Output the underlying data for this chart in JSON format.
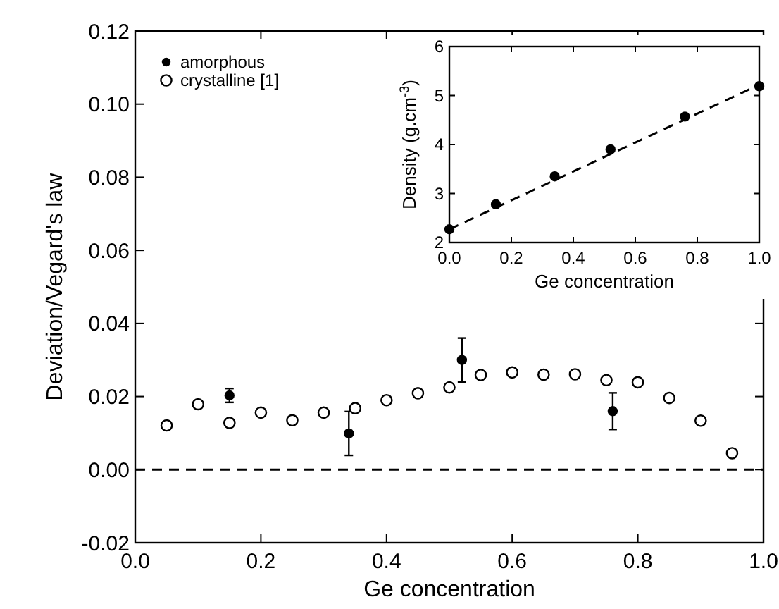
{
  "chart_data": [
    {
      "type": "scatter",
      "xlabel": "Ge concentration",
      "ylabel": "Deviation/Vegard's law",
      "xlim": [
        0,
        1
      ],
      "ylim": [
        -0.02,
        0.12
      ],
      "xticks": [
        {
          "value": 0,
          "label": "0.0"
        },
        {
          "value": 0.2,
          "label": "0.2"
        },
        {
          "value": 0.4,
          "label": "0.4"
        },
        {
          "value": 0.6,
          "label": "0.6"
        },
        {
          "value": 0.8,
          "label": "0.8"
        },
        {
          "value": 1,
          "label": "1.0"
        }
      ],
      "yticks": [
        {
          "value": -0.02,
          "label": "-0.02"
        },
        {
          "value": 0,
          "label": "0.00"
        },
        {
          "value": 0.02,
          "label": "0.02"
        },
        {
          "value": 0.04,
          "label": "0.04"
        },
        {
          "value": 0.06,
          "label": "0.06"
        },
        {
          "value": 0.08,
          "label": "0.08"
        },
        {
          "value": 0.1,
          "label": "0.10"
        },
        {
          "value": 0.12,
          "label": "0.12"
        }
      ],
      "legend": "top left",
      "grid": false,
      "marker": "circle",
      "series": [
        {
          "name": "amorphous",
          "color": "#000000",
          "x": [
            0.15,
            0.34,
            0.52,
            0.76
          ],
          "values": [
            0.0203,
            0.0099,
            0.03,
            0.016
          ],
          "errors": [
            0.0019,
            0.006,
            0.006,
            0.005
          ]
        },
        {
          "name": "crystalline [1]",
          "color": "#000000",
          "x": [
            0.05,
            0.1,
            0.15,
            0.2,
            0.25,
            0.3,
            0.35,
            0.4,
            0.45,
            0.5,
            0.55,
            0.6,
            0.65,
            0.7,
            0.75,
            0.8,
            0.85,
            0.9,
            0.95
          ],
          "values": [
            0.0121,
            0.0179,
            0.0128,
            0.0156,
            0.0135,
            0.0156,
            0.0168,
            0.019,
            0.0209,
            0.0225,
            0.0259,
            0.0266,
            0.026,
            0.0261,
            0.0245,
            0.0239,
            0.0196,
            0.0134,
            0.0045
          ]
        }
      ],
      "ref_lines": [
        {
          "axis": "y",
          "value": 0,
          "color": "#000000",
          "line_style": "dashed"
        }
      ]
    },
    {
      "type": "scatter",
      "xlabel": "Ge concentration",
      "ylabel": "Density (g.cm$^{-3}$)",
      "xlim": [
        0,
        1
      ],
      "ylim": [
        2,
        6
      ],
      "xticks": [
        {
          "value": 0,
          "label": "0.0"
        },
        {
          "value": 0.2,
          "label": "0.2"
        },
        {
          "value": 0.4,
          "label": "0.4"
        },
        {
          "value": 0.6,
          "label": "0.6"
        },
        {
          "value": 0.8,
          "label": "0.8"
        },
        {
          "value": 1,
          "label": "1.0"
        }
      ],
      "yticks": [
        2,
        3,
        4,
        5,
        6
      ],
      "grid": false,
      "legend": false,
      "marker": "circle",
      "series": [
        {
          "color": "#000000",
          "x": [
            0,
            0.15,
            0.34,
            0.52,
            0.76,
            1
          ],
          "values": [
            2.27,
            2.78,
            3.35,
            3.9,
            4.57,
            5.19
          ]
        },
        {
          "type": "line",
          "color": "#000000",
          "line_style": "dashed",
          "marker": "none",
          "x": [
            0,
            1
          ],
          "values": [
            2.27,
            5.22
          ]
        }
      ]
    }
  ]
}
